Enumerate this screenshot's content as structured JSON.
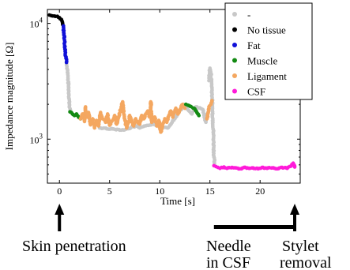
{
  "chart_data": {
    "type": "scatter",
    "xlabel": "Time [s]",
    "ylabel": "Impedance magnitude [Ω]",
    "xlim": [
      -1.2,
      24.0
    ],
    "ylim_log10": [
      2.62,
      4.12
    ],
    "y_scale": "log",
    "x_ticks": [
      0,
      5,
      10,
      15,
      20
    ],
    "x_tick_labels": [
      "0",
      "5",
      "10",
      "15",
      "20"
    ],
    "y_ticks": [
      1000,
      10000
    ],
    "y_tick_labels": [
      {
        "base": "10",
        "exp": "3"
      },
      {
        "base": "10",
        "exp": "4"
      }
    ],
    "grid": false,
    "legend_position": "top-right",
    "legend": [
      {
        "label": "-",
        "color": "#c8c8c8"
      },
      {
        "label": "No tissue",
        "color": "#000000"
      },
      {
        "label": "Fat",
        "color": "#1010d8"
      },
      {
        "label": "Muscle",
        "color": "#138a13"
      },
      {
        "label": "Ligament",
        "color": "#f4a760"
      },
      {
        "label": "CSF",
        "color": "#ff1ad9"
      }
    ],
    "series": [
      {
        "name": "No tissue",
        "color": "#000000",
        "points": [
          [
            -1.0,
            11800
          ],
          [
            -0.7,
            11600
          ],
          [
            -0.4,
            11500
          ],
          [
            -0.2,
            11500
          ],
          [
            0.0,
            11200
          ],
          [
            0.2,
            10800
          ],
          [
            0.3,
            10200
          ],
          [
            0.4,
            9500
          ]
        ]
      },
      {
        "name": "Fat",
        "color": "#1010d8",
        "points": [
          [
            0.4,
            9500
          ],
          [
            0.45,
            8200
          ],
          [
            0.5,
            7200
          ],
          [
            0.55,
            6300
          ],
          [
            0.6,
            5600
          ],
          [
            0.65,
            5000
          ],
          [
            0.7,
            4600
          ]
        ]
      },
      {
        "name": "-",
        "color": "#c8c8c8",
        "points": [
          [
            0.7,
            4600
          ],
          [
            0.8,
            4000
          ],
          [
            0.85,
            3400
          ],
          [
            0.9,
            2900
          ],
          [
            0.95,
            2400
          ],
          [
            1.0,
            2000
          ],
          [
            1.05,
            1750
          ]
        ]
      },
      {
        "name": "Muscle",
        "color": "#138a13",
        "points": [
          [
            1.05,
            1720
          ],
          [
            1.3,
            1650
          ],
          [
            1.5,
            1600
          ],
          [
            1.7,
            1650
          ],
          [
            1.9,
            1550
          ],
          [
            2.1,
            1500
          ]
        ]
      },
      {
        "name": "Ligament",
        "color": "#f4a760",
        "points": [
          [
            2.1,
            1500
          ],
          [
            2.3,
            1650
          ],
          [
            2.5,
            1420
          ],
          [
            2.6,
            1900
          ],
          [
            2.7,
            1550
          ],
          [
            2.9,
            1700
          ],
          [
            3.1,
            1330
          ],
          [
            3.3,
            1500
          ],
          [
            3.5,
            1250
          ],
          [
            3.7,
            1450
          ],
          [
            3.9,
            1300
          ],
          [
            4.1,
            1700
          ],
          [
            4.3,
            1500
          ],
          [
            4.6,
            1400
          ],
          [
            4.8,
            1650
          ],
          [
            5.0,
            1320
          ],
          [
            5.3,
            1450
          ],
          [
            5.5,
            1600
          ],
          [
            5.7,
            1350
          ],
          [
            5.9,
            1550
          ],
          [
            6.1,
            1800
          ],
          [
            6.3,
            2100
          ],
          [
            6.5,
            1500
          ],
          [
            6.7,
            1250
          ],
          [
            6.9,
            1400
          ],
          [
            7.0,
            1600
          ],
          [
            7.2,
            1450
          ],
          [
            7.4,
            1300
          ],
          [
            7.6,
            1500
          ],
          [
            7.8,
            1400
          ],
          [
            8.0,
            1350
          ],
          [
            8.2,
            1600
          ],
          [
            8.4,
            1500
          ],
          [
            8.6,
            1650
          ],
          [
            8.8,
            1750
          ],
          [
            9.0,
            1550
          ],
          [
            9.1,
            2100
          ],
          [
            9.2,
            1400
          ],
          [
            9.5,
            1550
          ],
          [
            9.7,
            1300
          ],
          [
            9.9,
            1450
          ],
          [
            10.1,
            1150
          ],
          [
            10.3,
            1350
          ],
          [
            10.5,
            1500
          ],
          [
            10.7,
            1400
          ],
          [
            10.9,
            1600
          ],
          [
            11.1,
            1750
          ],
          [
            11.3,
            1550
          ],
          [
            11.6,
            1850
          ],
          [
            11.8,
            1650
          ],
          [
            12.0,
            1800
          ],
          [
            12.3,
            2000
          ],
          [
            12.5,
            1850
          ]
        ]
      },
      {
        "name": "-",
        "color": "#c8c8c8",
        "points": [
          [
            4.0,
            1250
          ],
          [
            6.4,
            1200
          ],
          [
            7.7,
            1300
          ],
          [
            8.0,
            1250
          ],
          [
            9.3,
            1350
          ],
          [
            10.8,
            1250
          ],
          [
            12.4,
            1950
          ],
          [
            13.2,
            1650
          ],
          [
            13.6,
            1900
          ],
          [
            14.3,
            1800
          ],
          [
            14.5,
            1500
          ],
          [
            14.6,
            1400
          ],
          [
            14.7,
            1550
          ],
          [
            14.8,
            1700
          ]
        ]
      },
      {
        "name": "Muscle",
        "color": "#138a13",
        "points": [
          [
            12.6,
            2000
          ],
          [
            12.9,
            1950
          ],
          [
            13.4,
            1850
          ],
          [
            13.7,
            1700
          ],
          [
            13.9,
            1600
          ]
        ]
      },
      {
        "name": "Ligament",
        "color": "#f4a760",
        "points": [
          [
            14.7,
            1500
          ],
          [
            14.9,
            1900
          ],
          [
            15.1,
            2000
          ],
          [
            15.2,
            2150
          ]
        ]
      },
      {
        "name": "-",
        "color": "#c8c8c8",
        "points": [
          [
            14.9,
            3200
          ],
          [
            15.0,
            4100
          ],
          [
            15.1,
            3700
          ],
          [
            15.15,
            3200
          ],
          [
            15.2,
            2800
          ],
          [
            15.22,
            2300
          ],
          [
            15.25,
            1800
          ],
          [
            15.3,
            1400
          ],
          [
            15.35,
            1100
          ],
          [
            15.38,
            850
          ],
          [
            15.4,
            700
          ],
          [
            15.45,
            620
          ]
        ]
      },
      {
        "name": "CSF",
        "color": "#ff1ad9",
        "points": [
          [
            15.4,
            590
          ],
          [
            15.6,
            580
          ],
          [
            15.8,
            570
          ],
          [
            16.0,
            560
          ],
          [
            16.4,
            575
          ],
          [
            16.7,
            560
          ],
          [
            17.2,
            570
          ],
          [
            17.6,
            565
          ],
          [
            18.0,
            555
          ],
          [
            18.4,
            570
          ],
          [
            18.9,
            560
          ],
          [
            19.3,
            565
          ],
          [
            19.8,
            555
          ],
          [
            20.2,
            570
          ],
          [
            20.7,
            560
          ],
          [
            21.2,
            565
          ],
          [
            21.7,
            555
          ],
          [
            22.2,
            570
          ],
          [
            22.7,
            560
          ],
          [
            23.1,
            585
          ],
          [
            23.3,
            620
          ],
          [
            23.45,
            575
          ]
        ]
      }
    ]
  },
  "annotations": {
    "skin_penetration": "Skin penetration",
    "needle_line1": "Needle",
    "needle_line2": "in CSF",
    "stylet_line1": "Stylet",
    "stylet_line2": "removal"
  }
}
